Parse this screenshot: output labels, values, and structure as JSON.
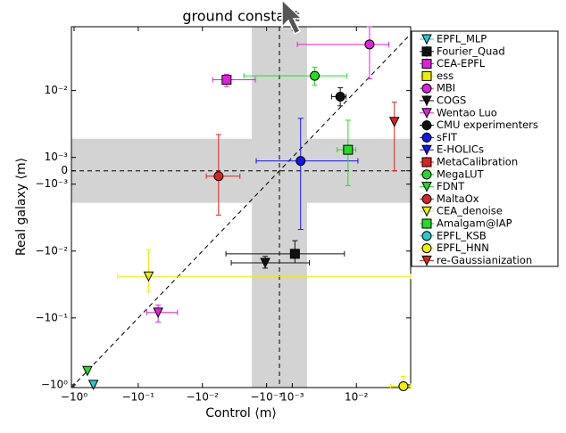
{
  "chart_data": {
    "type": "scatter",
    "title": "ground constant",
    "x_label": "Control ⟨m⟩",
    "y_label": "Real galaxy ⟨m⟩",
    "xscale": "symlog",
    "yscale": "symlog",
    "linthresh": 0.001,
    "linscale": 0.2,
    "xlim": [
      -1.1,
      0.07
    ],
    "ylim": [
      -1.1,
      0.09
    ],
    "xticks": [
      {
        "value": -1,
        "label": "−10⁰"
      },
      {
        "value": -0.1,
        "label": "−10⁻¹"
      },
      {
        "value": -0.01,
        "label": "−10⁻²"
      },
      {
        "value": -0.001,
        "label": "−10⁻³"
      },
      {
        "value": 0.001,
        "label": "10⁻³"
      },
      {
        "value": 0.01,
        "label": "10⁻²"
      }
    ],
    "yticks": [
      {
        "value": 0.01,
        "label": "10⁻²"
      },
      {
        "value": 0.001,
        "label": "10⁻³"
      },
      0,
      {
        "value": -0.001,
        "label": "−10⁻³"
      },
      {
        "value": -0.01,
        "label": "−10⁻²"
      },
      {
        "value": -0.1,
        "label": "−10⁻¹"
      },
      {
        "value": -1,
        "label": "−10⁰"
      }
    ],
    "shade_x": [
      -0.0017,
      0.0017
    ],
    "shade_y": [
      -0.0019,
      0.0019
    ],
    "legend": "upper right outside",
    "series": [
      {
        "name": "EPFL_MLP",
        "color": "#22cccc",
        "marker": "v",
        "x": -0.5,
        "y": -1.0,
        "xerr": [
          0,
          0
        ],
        "yerr": [
          0,
          0
        ]
      },
      {
        "name": "Fourier_Quad",
        "color": "#111111",
        "marker": "s",
        "x": 0.0011,
        "y": -0.011,
        "xerr": [
          0.0054,
          0.0054
        ],
        "yerr": [
          0.004,
          0.004
        ]
      },
      {
        "name": "CEA-EPFL",
        "color": "#e020e0",
        "marker": "s",
        "x": -0.0042,
        "y": 0.0145,
        "xerr": [
          0.0027,
          0.0027
        ],
        "yerr": [
          0.003,
          0.003
        ]
      },
      {
        "name": "ess",
        "color": "#eeee00",
        "marker": "s",
        "x": null,
        "y": null,
        "xerr": [
          0,
          0
        ],
        "yerr": [
          0,
          0
        ]
      },
      {
        "name": "MBI",
        "color": "#e020e0",
        "marker": "o",
        "x": 0.016,
        "y": 0.049,
        "xerr": [
          0.0148,
          0.016
        ],
        "yerr": [
          0.034,
          0.05
        ]
      },
      {
        "name": "COGS",
        "color": "#111111",
        "marker": "v",
        "x": -0.00105,
        "y": -0.015,
        "xerr": [
          0.0025,
          0.0029
        ],
        "yerr": [
          0.003,
          0.003
        ]
      },
      {
        "name": "Wentao Luo",
        "color": "#e020e0",
        "marker": "v",
        "x": -0.049,
        "y": -0.083,
        "xerr": [
          0.025,
          0.0245
        ],
        "yerr": [
          0.032,
          0.019
        ]
      },
      {
        "name": "CMU experimenters",
        "color": "#111111",
        "marker": "o",
        "x": 0.0056,
        "y": 0.0081,
        "xerr": [
          0.0015,
          0.0013
        ],
        "yerr": [
          0.0022,
          0.0029
        ]
      },
      {
        "name": "sFIT",
        "color": "#1515ee",
        "marker": "o",
        "x": 0.00135,
        "y": 0.00074,
        "xerr": [
          0.0028,
          0.0092
        ],
        "yerr": [
          0.0055,
          0.0031
        ]
      },
      {
        "name": "E-HOLICs",
        "color": "#1515ee",
        "marker": "v",
        "x": null,
        "y": null,
        "xerr": [
          0,
          0
        ],
        "yerr": [
          0,
          0
        ]
      },
      {
        "name": "MetaCalibration",
        "color": "#dd2222",
        "marker": "s",
        "x": null,
        "y": null,
        "xerr": [
          0,
          0
        ],
        "yerr": [
          0,
          0
        ]
      },
      {
        "name": "MegaLUT",
        "color": "#22dd22",
        "marker": "o",
        "x": 0.00224,
        "y": 0.0166,
        "xerr": [
          0.0045,
          0.0049
        ],
        "yerr": [
          0.0046,
          0.0058
        ]
      },
      {
        "name": "FDNT",
        "color": "#22dd22",
        "marker": "v",
        "x": -0.62,
        "y": -0.62,
        "xerr": [
          0,
          0
        ],
        "yerr": [
          0,
          0
        ]
      },
      {
        "name": "MaltaOx",
        "color": "#dd2222",
        "marker": "o",
        "x": -0.0056,
        "y": -0.0004,
        "xerr": [
          0.0031,
          0.003
        ],
        "yerr": [
          0.0025,
          0.0026
        ]
      },
      {
        "name": "CEA_denoise",
        "color": "#eeee00",
        "marker": "v",
        "x": -0.069,
        "y": -0.024,
        "xerr": [
          0.14,
          0.2
        ],
        "yerr": [
          0.017,
          0.0145
        ]
      },
      {
        "name": "Amalgam@IAP",
        "color": "#22dd22",
        "marker": "s",
        "x": 0.0074,
        "y": 0.0013,
        "xerr": [
          0.0024,
          0.0024
        ],
        "yerr": [
          0.00235,
          0.0023
        ]
      },
      {
        "name": "EPFL_KSB",
        "color": "#22cccc",
        "marker": "o",
        "x": null,
        "y": null,
        "xerr": [
          0,
          0
        ],
        "yerr": [
          0,
          0
        ]
      },
      {
        "name": "EPFL_HNN",
        "color": "#eeee00",
        "marker": "o",
        "x": 0.054,
        "y": -1.05,
        "xerr": [
          0.02,
          0.02
        ],
        "yerr": [
          0.3,
          0.3
        ]
      },
      {
        "name": "re-Gaussianization",
        "color": "#dd2222",
        "marker": "v",
        "x": 0.039,
        "y": 0.0034,
        "xerr": [
          0,
          0
        ],
        "yerr": [
          0.0034,
          0.0033
        ]
      }
    ]
  }
}
